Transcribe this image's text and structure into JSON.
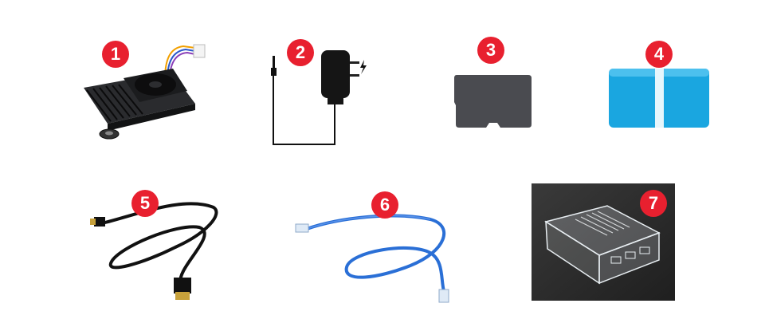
{
  "badges": [
    "1",
    "2",
    "3",
    "4",
    "5",
    "6",
    "7"
  ],
  "colors": {
    "badge": "#e8202f",
    "heatsink": "#1e1f22",
    "adapter": "#151515",
    "sdcard": "#4a4b50",
    "case_blue": "#1aa6e0",
    "ethernet": "#2a6fd6",
    "photo_bg": "#2e2e2e"
  },
  "items": [
    {
      "name": "heatsink-with-fan",
      "icon": "heatsink-fan-icon"
    },
    {
      "name": "power-adapter",
      "icon": "power-adapter-icon"
    },
    {
      "name": "micro-sd-card",
      "icon": "micro-sd-card-icon"
    },
    {
      "name": "card-reader-case",
      "icon": "blue-case-icon"
    },
    {
      "name": "hdmi-cable",
      "icon": "hdmi-cable-icon"
    },
    {
      "name": "ethernet-cable",
      "icon": "ethernet-cable-icon"
    },
    {
      "name": "clear-case",
      "icon": "clear-acrylic-case-icon"
    }
  ]
}
